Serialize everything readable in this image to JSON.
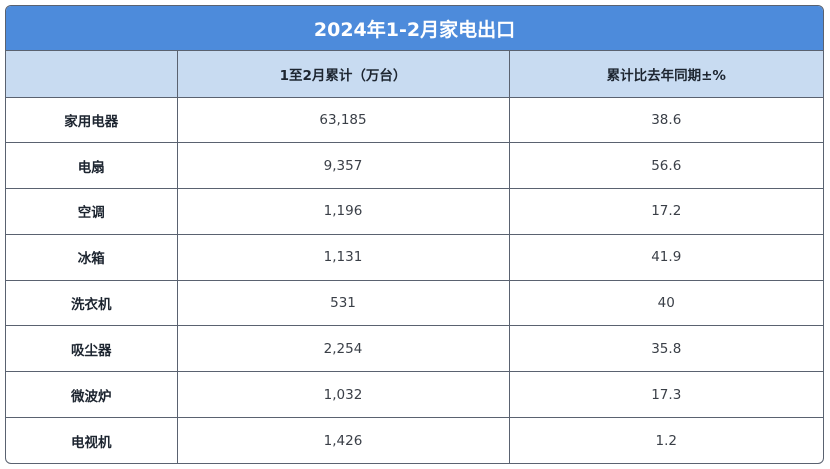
{
  "chart_data": {
    "type": "table",
    "title": "2024年1-2月家电出口",
    "columns": [
      "",
      "1至2月累计（万台）",
      "累计比去年同期±%"
    ],
    "rows": [
      {
        "category": "家用电器",
        "cumulative": "63,185",
        "yoy": "38.6"
      },
      {
        "category": "电扇",
        "cumulative": "9,357",
        "yoy": "56.6"
      },
      {
        "category": "空调",
        "cumulative": "1,196",
        "yoy": "17.2"
      },
      {
        "category": "冰箱",
        "cumulative": "1,131",
        "yoy": "41.9"
      },
      {
        "category": "洗衣机",
        "cumulative": "531",
        "yoy": "40"
      },
      {
        "category": "吸尘器",
        "cumulative": "2,254",
        "yoy": "35.8"
      },
      {
        "category": "微波炉",
        "cumulative": "1,032",
        "yoy": "17.3"
      },
      {
        "category": "电视机",
        "cumulative": "1,426",
        "yoy": "1.2"
      }
    ]
  },
  "colors": {
    "header_bar": "#4d8bdb",
    "column_header": "#c8dbf1",
    "border": "#5a6270"
  }
}
